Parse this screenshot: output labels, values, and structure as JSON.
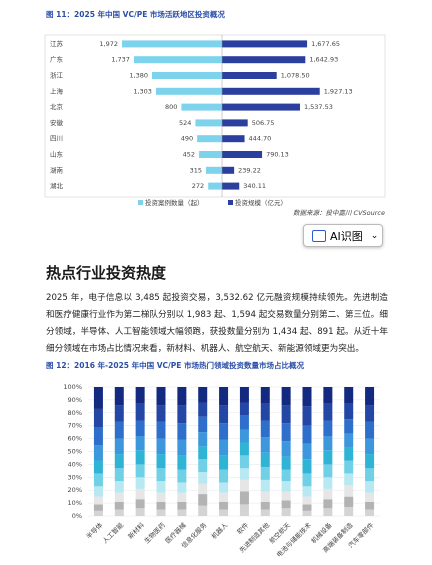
{
  "chart_data": [
    {
      "type": "diverging_bar",
      "title": "图 11：2025 年中国 VC/PE 市场活跃地区投资概况",
      "categories": [
        "江苏",
        "广东",
        "浙江",
        "上海",
        "北京",
        "安徽",
        "四川",
        "山东",
        "湖南",
        "湖北"
      ],
      "series": [
        {
          "name": "投资案例数量（起）",
          "color": "#7dd3ec",
          "side": "left",
          "values": [
            1972,
            1737,
            1380,
            1303,
            800,
            524,
            490,
            452,
            315,
            272
          ],
          "value_labels": [
            "1,972",
            "1,737",
            "1,380",
            "1,303",
            "800",
            "524",
            "490",
            "452",
            "315",
            "272"
          ]
        },
        {
          "name": "投资规模（亿元）",
          "color": "#2b3f9e",
          "side": "right",
          "values": [
            1677.65,
            1642.93,
            1078.5,
            1927.13,
            1537.53,
            506.75,
            444.7,
            790.13,
            239.22,
            340.11
          ],
          "value_labels": [
            "1,677.65",
            "1,642.93",
            "1,078.50",
            "1,927.13",
            "1,537.53",
            "506.75",
            "444.70",
            "790.13",
            "239.22",
            "340.11"
          ]
        }
      ],
      "source": "数据来源：投中嘉川 CVSource"
    },
    {
      "type": "stacked_bar",
      "title": "图 12：2016 年-2025 年中国 VC/PE 市场热门领域投资数量市场占比概况",
      "categories": [
        "半导体",
        "人工智能",
        "新材料",
        "生物医药",
        "医疗器械",
        "信息化服务",
        "机器人",
        "软件",
        "先进制造其他",
        "航空航天",
        "电池与储能技术",
        "机械设备",
        "高端装备制造",
        "汽车零部件"
      ],
      "ylim": [
        0,
        100
      ],
      "yticks": [
        {
          "value": 0,
          "label": "0%"
        },
        {
          "value": 10,
          "label": "10%"
        },
        {
          "value": 20,
          "label": "20%"
        },
        {
          "value": 30,
          "label": "30%"
        },
        {
          "value": 40,
          "label": "40%"
        },
        {
          "value": 50,
          "label": "50%"
        },
        {
          "value": 60,
          "label": "60%"
        },
        {
          "value": 70,
          "label": "70%"
        },
        {
          "value": 80,
          "label": "80%"
        },
        {
          "value": 90,
          "label": "90%"
        },
        {
          "value": 100,
          "label": "100%"
        }
      ],
      "grid": true,
      "series": [
        {
          "color": "#d4d4d4",
          "values": [
            4,
            5,
            6,
            5,
            5,
            8,
            5,
            9,
            5,
            6,
            4,
            6,
            7,
            5
          ]
        },
        {
          "color": "#b3b3b3",
          "values": [
            5,
            6,
            7,
            6,
            6,
            9,
            6,
            10,
            6,
            6,
            5,
            7,
            8,
            6
          ]
        },
        {
          "color": "#e6e6e6",
          "values": [
            6,
            7,
            8,
            7,
            7,
            8,
            7,
            9,
            8,
            7,
            6,
            8,
            9,
            7
          ]
        },
        {
          "color": "#b8e8f2",
          "values": [
            8,
            9,
            9,
            9,
            8,
            9,
            8,
            9,
            9,
            8,
            8,
            9,
            9,
            9
          ]
        },
        {
          "color": "#6fd0e6",
          "values": [
            10,
            10,
            10,
            10,
            10,
            10,
            10,
            10,
            10,
            9,
            10,
            10,
            10,
            10
          ]
        },
        {
          "color": "#2fb4d6",
          "values": [
            10,
            11,
            11,
            11,
            11,
            10,
            11,
            10,
            11,
            10,
            11,
            11,
            10,
            11
          ]
        },
        {
          "color": "#3d97dc",
          "values": [
            12,
            12,
            11,
            12,
            12,
            11,
            12,
            10,
            12,
            12,
            12,
            11,
            11,
            12
          ]
        },
        {
          "color": "#2f6fcc",
          "values": [
            14,
            13,
            12,
            13,
            13,
            12,
            13,
            11,
            13,
            14,
            14,
            12,
            11,
            13
          ]
        },
        {
          "color": "#2447a6",
          "values": [
            14,
            13,
            13,
            13,
            14,
            11,
            14,
            10,
            13,
            14,
            15,
            13,
            12,
            13
          ]
        },
        {
          "color": "#142a80",
          "values": [
            17,
            14,
            13,
            14,
            14,
            12,
            14,
            12,
            13,
            14,
            15,
            13,
            13,
            14
          ]
        }
      ]
    }
  ],
  "button": "AI识图",
  "heading": "热点行业投资热度",
  "paragraph": "2025 年，电子信息以 3,485 起投资交易，3,532.62 亿元融资规模持续领先。先进制造和医疗健康行业作为第二梯队分别以 1,983 起、1,594 起交易数量分别第二、第三位。细分领域，半导体、人工智能领域大幅领跑，获投数量分别为 1,434 起、891 起。从近十年细分领域在市场占比情况来看，新材料、机器人、航空航天、新能源领域更为突出。"
}
